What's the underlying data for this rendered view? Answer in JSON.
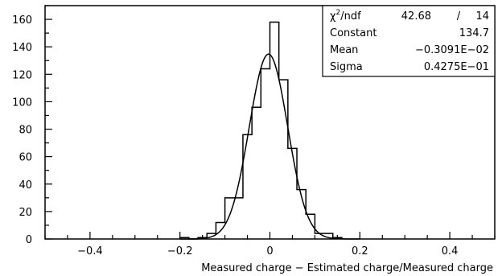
{
  "chart_data": {
    "type": "histogram",
    "title": "",
    "xlabel": "Measured charge − Estimated charge/Measured charge",
    "ylabel": "",
    "xlim": [
      -0.5,
      0.5
    ],
    "ylim": [
      0,
      170
    ],
    "xticks": [
      -0.4,
      -0.2,
      0,
      0.2,
      0.4
    ],
    "xtick_labels": [
      "−0.4",
      "−0.2",
      "0",
      "0.2",
      "0.4"
    ],
    "yticks": [
      0,
      20,
      40,
      60,
      80,
      100,
      120,
      140,
      160
    ],
    "ytick_labels": [
      "0",
      "20",
      "40",
      "60",
      "80",
      "100",
      "120",
      "140",
      "160"
    ],
    "grid": false,
    "bin_edges": [
      -0.2,
      -0.18,
      -0.16,
      -0.14,
      -0.12,
      -0.1,
      -0.08,
      -0.06,
      -0.04,
      -0.02,
      0,
      0.02,
      0.04,
      0.06,
      0.08,
      0.1,
      0.12,
      0.14,
      0.16
    ],
    "counts": [
      1,
      0,
      1,
      4,
      12,
      30,
      30,
      76,
      96,
      124,
      158,
      116,
      66,
      36,
      18,
      4,
      4,
      1
    ],
    "fit": {
      "function": "gaussian",
      "constant": 134.7,
      "mean": -0.003091,
      "sigma": 0.04275
    },
    "stats_box": {
      "chi2_label": "χ",
      "chi2_sup": "2",
      "chi2_suffix": "/ndf",
      "chi2_value": "42.68",
      "chi2_sep": "/",
      "ndf_value": "14",
      "constant_label": "Constant",
      "constant_value": "134.7",
      "mean_label": "Mean",
      "mean_value": "−0.3091E−02",
      "sigma_label": "Sigma",
      "sigma_value": "0.4275E−01"
    }
  }
}
